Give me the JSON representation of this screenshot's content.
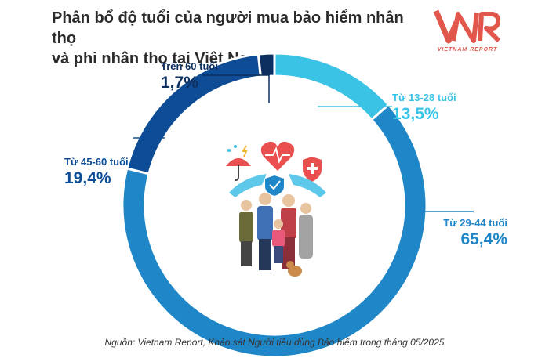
{
  "title_line1": "Phân bổ độ tuổi của người mua bảo hiểm nhân thọ",
  "title_line2": "và phi nhân thọ tại Việt Nam",
  "logo": {
    "mark": "VNR",
    "sub": "VIETNAM REPORT"
  },
  "source": "Nguồn: Vietnam Report, Khảo sát Người tiêu dùng Bảo hiểm trong tháng 05/2025",
  "chart_data": {
    "type": "pie",
    "variant": "donut",
    "categories": [
      "Từ 13-28 tuổi",
      "Từ 29-44 tuổi",
      "Từ 45-60 tuổi",
      "Trên 60 tuổi"
    ],
    "values": [
      13.5,
      65.4,
      19.4,
      1.7
    ],
    "value_labels": [
      "13,5%",
      "65,4%",
      "19,4%",
      "1,7%"
    ],
    "colors": [
      "#3bc3e6",
      "#1f86c8",
      "#0e4d96",
      "#0d2f60"
    ],
    "label_colors": [
      "#3bc3e6",
      "#1f86c8",
      "#0e4d96",
      "#0d2f60"
    ]
  }
}
